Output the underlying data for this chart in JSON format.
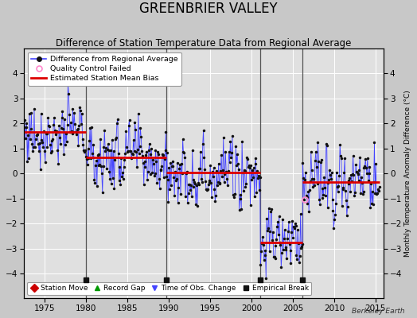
{
  "title": "GREENBRIER VALLEY",
  "subtitle": "Difference of Station Temperature Data from Regional Average",
  "ylabel_right": "Monthly Temperature Anomaly Difference (°C)",
  "xlim": [
    1972.5,
    2016.0
  ],
  "ylim": [
    -5,
    5
  ],
  "yticks": [
    -4,
    -3,
    -2,
    -1,
    0,
    1,
    2,
    3,
    4
  ],
  "xticks": [
    1975,
    1980,
    1985,
    1990,
    1995,
    2000,
    2005,
    2010,
    2015
  ],
  "background_color": "#c8c8c8",
  "plot_bg_color": "#e0e0e0",
  "grid_color": "#ffffff",
  "title_fontsize": 12,
  "subtitle_fontsize": 8.5,
  "watermark": "Berkeley Earth",
  "segment_biases": [
    {
      "x_start": 1972.5,
      "x_end": 1980.0,
      "bias": 1.65
    },
    {
      "x_start": 1980.0,
      "x_end": 1989.7,
      "bias": 0.65
    },
    {
      "x_start": 1989.7,
      "x_end": 2001.1,
      "bias": 0.05
    },
    {
      "x_start": 2001.1,
      "x_end": 2006.2,
      "bias": -2.75
    },
    {
      "x_start": 2006.2,
      "x_end": 2015.5,
      "bias": -0.35
    }
  ],
  "empirical_breaks": [
    1980.0,
    1989.7,
    2001.1,
    2006.2
  ],
  "qc_failed_x": 2006.5,
  "qc_failed_y": -1.05,
  "line_color": "#4444ff",
  "bias_color": "#dd0000",
  "marker_color": "#111111",
  "marker_size": 2.5,
  "seed": 77,
  "noise_std": 0.85
}
